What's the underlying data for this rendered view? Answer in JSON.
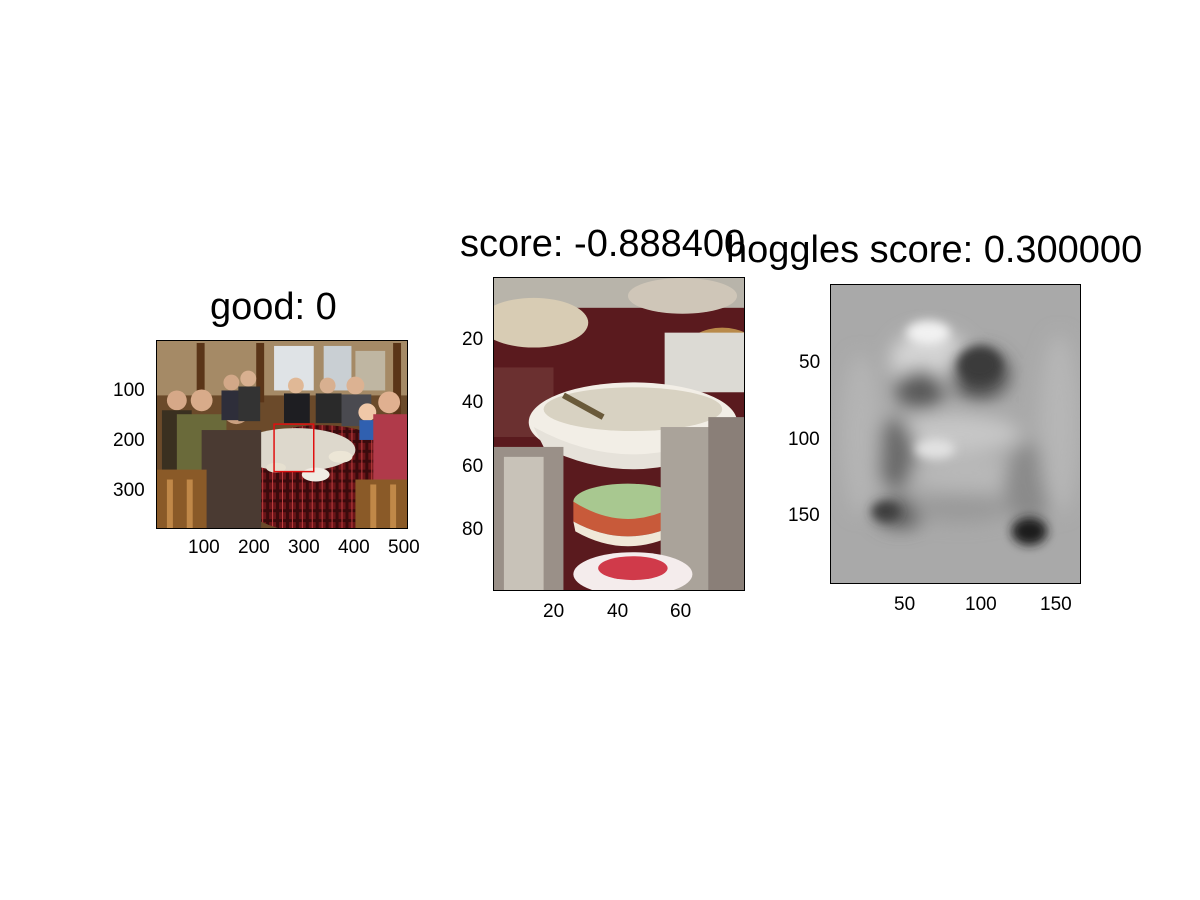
{
  "panels": [
    {
      "title": "good: 0",
      "image_content": "photo-of-family-at-dinner-table",
      "box_color": "#e01010",
      "xticks": [
        "100",
        "200",
        "300",
        "400",
        "500"
      ],
      "yticks": [
        "100",
        "200",
        "300"
      ]
    },
    {
      "title": "score: -0.888400",
      "image_content": "crop-of-table-with-bowls",
      "xticks": [
        "20",
        "40",
        "60"
      ],
      "yticks": [
        "20",
        "40",
        "60",
        "80"
      ]
    },
    {
      "title": "hoggles score: 0.300000",
      "image_content": "grayscale-hoggles-visualization",
      "xticks": [
        "50",
        "100",
        "150"
      ],
      "yticks": [
        "50",
        "100",
        "150"
      ]
    }
  ]
}
